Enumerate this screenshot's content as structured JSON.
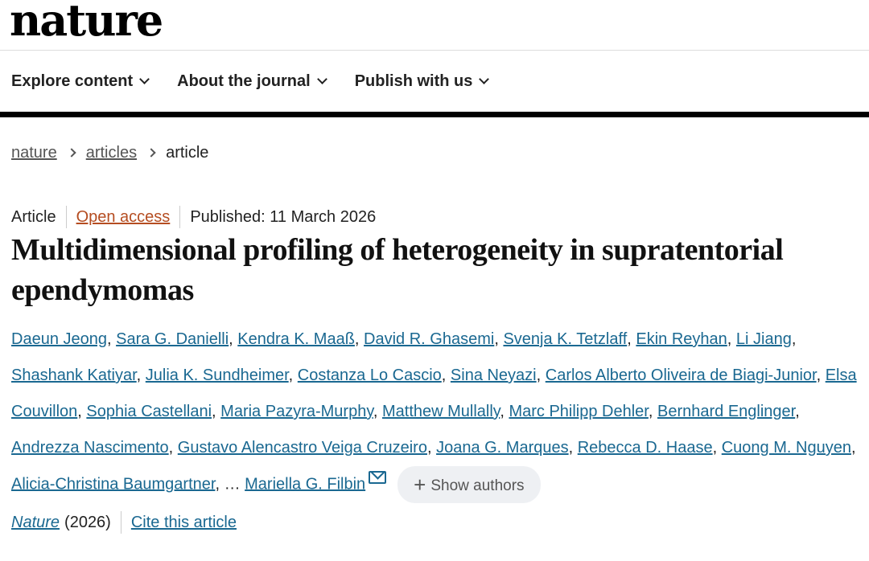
{
  "logo": "nature",
  "nav": [
    "Explore content",
    "About the journal",
    "Publish with us"
  ],
  "breadcrumb": [
    "nature",
    "articles",
    "article"
  ],
  "meta": {
    "type": "Article",
    "access": "Open access",
    "published": "Published: 11 March 2026"
  },
  "title": "Multidimensional profiling of heterogeneity in supratentorial ependymomas",
  "authors": [
    "Daeun Jeong",
    "Sara G. Danielli",
    "Kendra K. Maaß",
    "David R. Ghasemi",
    "Svenja K. Tetzlaff",
    "Ekin Reyhan",
    "Li Jiang",
    "Shashank Katiyar",
    "Julia K. Sundheimer",
    "Costanza Lo Cascio",
    "Sina Neyazi",
    "Carlos Alberto Oliveira de Biagi-Junior",
    "Elsa Couvillon",
    "Sophia Castellani",
    "Maria Pazyra-Murphy",
    "Matthew Mullally",
    "Marc Philipp Dehler",
    "Bernhard Englinger",
    "Andrezza Nascimento",
    "Gustavo Alencastro Veiga Cruzeiro",
    "Joana G. Marques",
    "Rebecca D. Haase",
    "Cuong M. Nguyen",
    "Alicia-Christina Baumgartner"
  ],
  "ellipsis": "…",
  "last_author": "Mariella G. Filbin",
  "show_authors": "Show authors",
  "citation": {
    "journal": "Nature",
    "year": "(2026)",
    "cite": "Cite this article"
  }
}
